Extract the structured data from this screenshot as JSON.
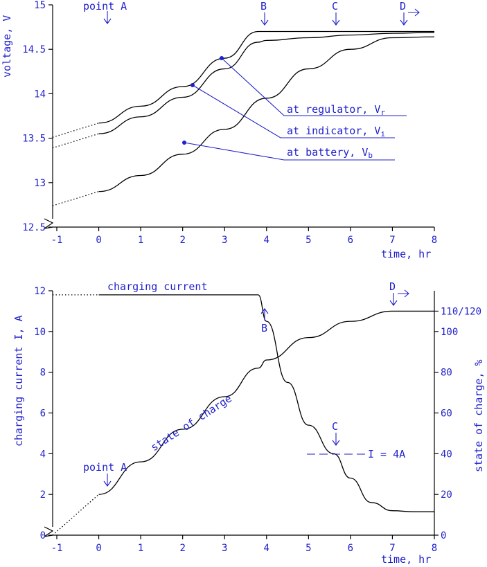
{
  "chart_data": [
    {
      "type": "line",
      "ylabel": "voltage, V",
      "xlabel": "time, hr",
      "xlim": [
        -1,
        8
      ],
      "ylim": [
        12.5,
        15
      ],
      "x_ticks": [
        "-1",
        "0",
        "1",
        "2",
        "3",
        "4",
        "5",
        "6",
        "7",
        "8"
      ],
      "y_ticks": [
        "12.5",
        "13",
        "13.5",
        "14",
        "14.5",
        "15"
      ],
      "series": [
        {
          "name": "at regulator, Vr",
          "label_main": "at regulator, V",
          "label_sub": "r",
          "x": [
            -1.1,
            0,
            1,
            2,
            3,
            3.8,
            4,
            5,
            6,
            7,
            8
          ],
          "y": [
            13.51,
            13.67,
            13.86,
            14.08,
            14.4,
            14.7,
            14.7,
            14.7,
            14.7,
            14.7,
            14.7
          ]
        },
        {
          "name": "at indicator, Vi",
          "label_main": "at indicator, V",
          "label_sub": "i",
          "x": [
            -1.1,
            0,
            1,
            2,
            3,
            3.8,
            4,
            5,
            6,
            7,
            8
          ],
          "y": [
            13.39,
            13.55,
            13.74,
            13.96,
            14.28,
            14.58,
            14.6,
            14.63,
            14.66,
            14.68,
            14.69
          ]
        },
        {
          "name": "at battery, Vb",
          "label_main": "at battery, V",
          "label_sub": "b",
          "x": [
            -1.1,
            0,
            1,
            2,
            3,
            4,
            5,
            6,
            7,
            8
          ],
          "y": [
            12.74,
            12.9,
            13.08,
            13.32,
            13.6,
            13.95,
            14.28,
            14.5,
            14.63,
            14.64
          ]
        }
      ],
      "markers": [
        {
          "text": "point A",
          "x": 0
        },
        {
          "text": "B",
          "x": 3.8
        },
        {
          "text": "C",
          "x": 5.6
        },
        {
          "text": "D",
          "x": 7.2
        }
      ]
    },
    {
      "type": "line",
      "ylabel": "charging current I, A",
      "y2label": "state of charge, %",
      "xlabel": "time, hr",
      "xlim": [
        -1,
        8
      ],
      "ylim": [
        0,
        12
      ],
      "y2lim": [
        0,
        120
      ],
      "x_ticks": [
        "-1",
        "0",
        "1",
        "2",
        "3",
        "4",
        "5",
        "6",
        "7",
        "8"
      ],
      "y_ticks": [
        "0",
        "2",
        "4",
        "6",
        "8",
        "10",
        "12"
      ],
      "y2_ticks": [
        "0",
        "20",
        "40",
        "60",
        "80",
        "100",
        "110/120"
      ],
      "series": [
        {
          "name": "charging current",
          "x": [
            -1.1,
            0,
            1,
            2,
            3,
            3.8,
            4,
            4.5,
            5,
            5.6,
            6,
            6.5,
            7,
            7.5,
            8
          ],
          "y": [
            11.8,
            11.8,
            11.8,
            11.8,
            11.8,
            11.8,
            10.5,
            7.5,
            5.4,
            4,
            2.8,
            1.6,
            1.2,
            1.15,
            1.15
          ]
        },
        {
          "name": "state of charge",
          "x": [
            -1.1,
            0,
            1,
            2,
            3,
            3.8,
            4,
            5,
            6,
            7,
            8
          ],
          "y": [
            0,
            20,
            36,
            52,
            68,
            82,
            86,
            97,
            105,
            110,
            110
          ]
        }
      ],
      "annotations": [
        {
          "text": "I = 4A",
          "y": 4
        },
        {
          "text": "point A",
          "x": 0
        },
        {
          "text": "B",
          "x": 3.8
        },
        {
          "text": "C",
          "x": 5.6
        },
        {
          "text": "D",
          "x": 7.2
        }
      ]
    }
  ]
}
